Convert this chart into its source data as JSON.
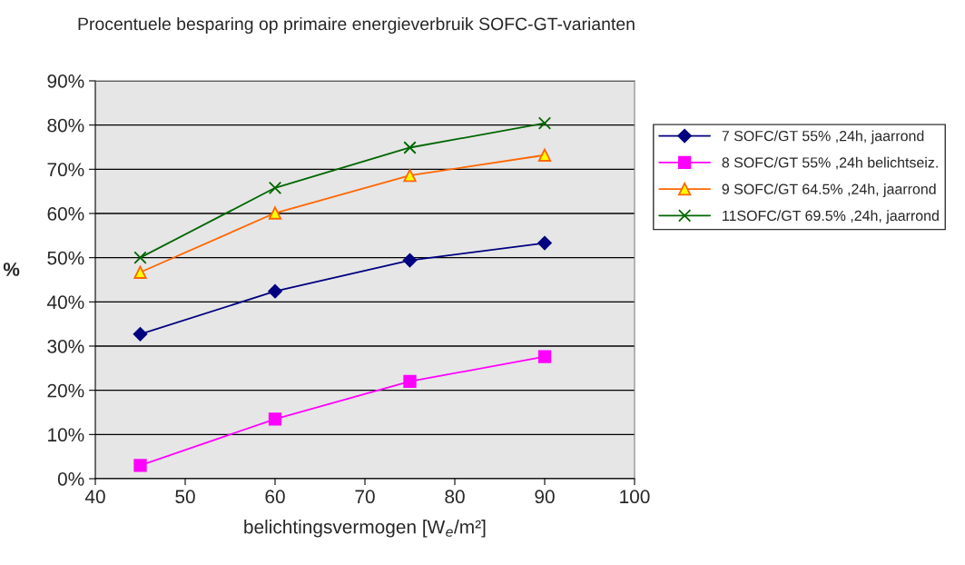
{
  "chart_data": {
    "type": "line",
    "title": "Procentuele besparing op primaire energieverbruik SOFC-GT-varianten",
    "xlabel": "belichtingsvermogen [W$_{e}$/m²]",
    "ylabel": "%",
    "x": [
      45,
      60,
      75,
      90
    ],
    "series": [
      {
        "name": "7 SOFC/GT 55% ,24h, jaarrond",
        "color": "#000080",
        "marker": "diamond",
        "values": [
          32.7,
          42.4,
          49.4,
          53.3
        ]
      },
      {
        "name": "8 SOFC/GT 55% ,24h belichtseiz.",
        "color": "#ff00ff",
        "marker": "square",
        "values": [
          3.0,
          13.5,
          22.0,
          27.6
        ]
      },
      {
        "name": "9 SOFC/GT 64.5% ,24h, jaarrond",
        "color": "#ff6600",
        "marker": "triangle",
        "values": [
          46.7,
          60.1,
          68.6,
          73.2
        ]
      },
      {
        "name": "11SOFC/GT 69.5% ,24h, jaarrond",
        "color": "#006600",
        "marker": "cross",
        "values": [
          50.0,
          65.8,
          74.9,
          80.4
        ]
      }
    ],
    "xlim": [
      40,
      100
    ],
    "xticks": [
      40,
      50,
      60,
      70,
      80,
      90,
      100
    ],
    "ylim": [
      0,
      90
    ],
    "yticks": [
      {
        "value": 0,
        "label": "0%"
      },
      {
        "value": 10,
        "label": "10%"
      },
      {
        "value": 20,
        "label": "20%"
      },
      {
        "value": 30,
        "label": "30%"
      },
      {
        "value": 40,
        "label": "40%"
      },
      {
        "value": 50,
        "label": "50%"
      },
      {
        "value": 60,
        "label": "60%"
      },
      {
        "value": 70,
        "label": "70%"
      },
      {
        "value": 80,
        "label": "80%"
      },
      {
        "value": 90,
        "label": "90%"
      }
    ],
    "grid": "y",
    "legend": "right"
  }
}
